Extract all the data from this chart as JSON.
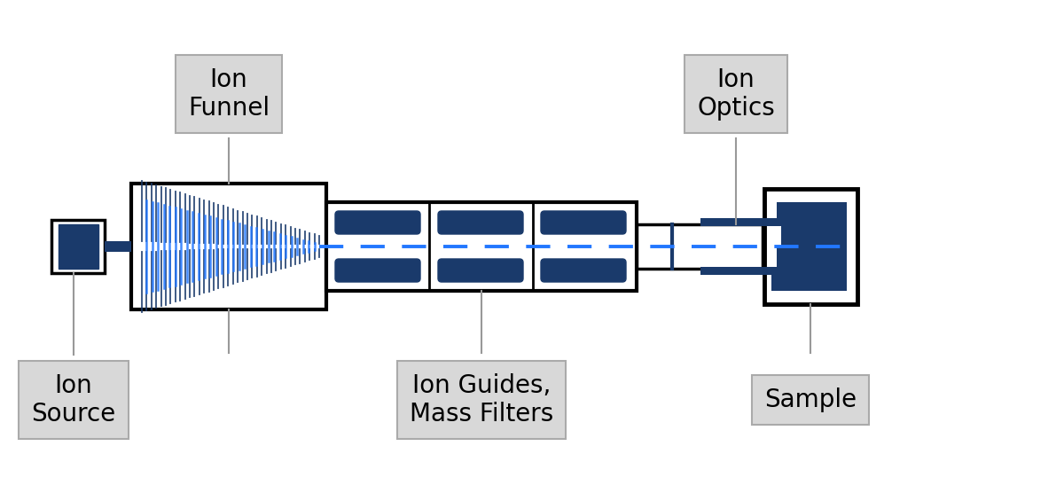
{
  "bg_color": "#ffffff",
  "dark_blue": "#1a3a6b",
  "bright_blue": "#2277ff",
  "gray_line": "#999999",
  "black": "#000000",
  "label_bg": "#d8d8d8",
  "fig_width": 12.0,
  "fig_height": 5.56,
  "labels": {
    "ion_source": "Ion\nSource",
    "ion_funnel": "Ion\nFunnel",
    "ion_guides": "Ion Guides,\nMass Filters",
    "ion_optics": "Ion\nOptics",
    "sample": "Sample"
  }
}
